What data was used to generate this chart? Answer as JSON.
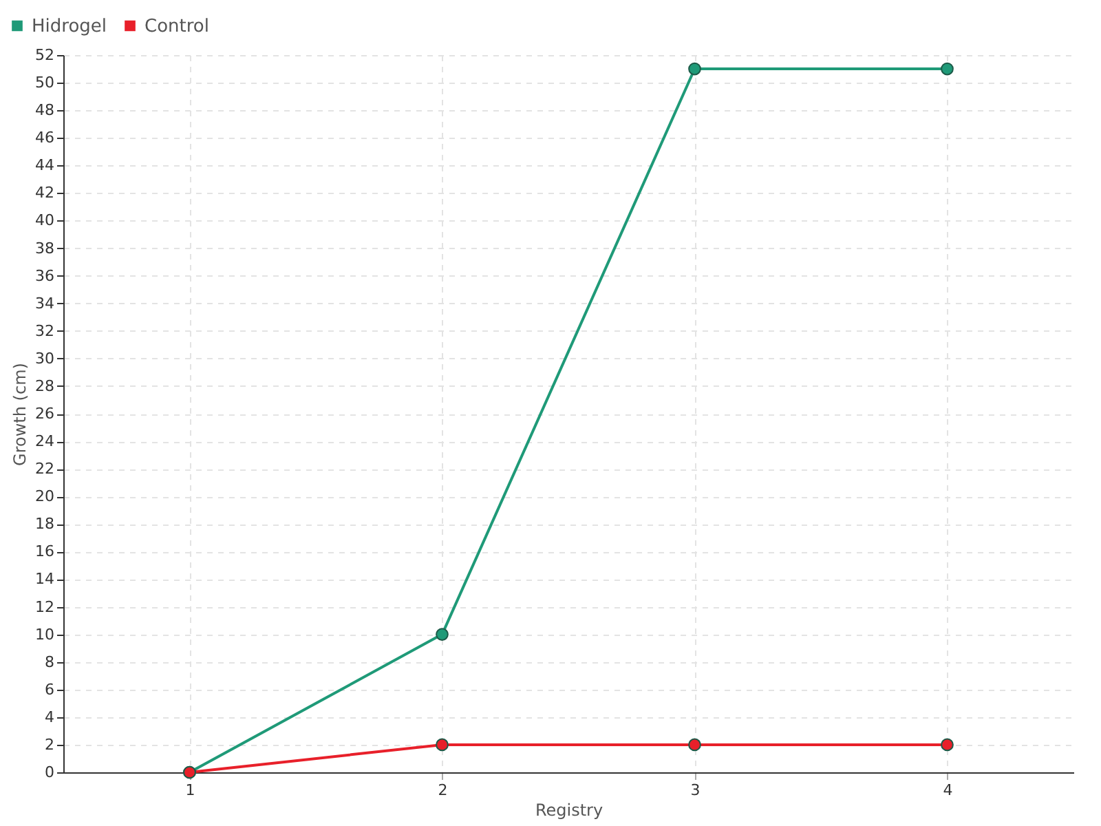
{
  "chart_data": {
    "type": "line",
    "xlabel": "Registry",
    "ylabel": "Growth (cm)",
    "x": [
      1,
      2,
      3,
      4
    ],
    "series": [
      {
        "name": "Hidrogel",
        "color": "#1f9a78",
        "values": [
          0,
          10,
          51,
          51
        ]
      },
      {
        "name": "Control",
        "color": "#e8202a",
        "values": [
          0,
          2,
          2,
          2
        ]
      }
    ],
    "xlim": [
      0.5,
      4.5
    ],
    "xticks": [
      1,
      2,
      3,
      4
    ],
    "ylim": [
      0,
      52
    ],
    "yticks": [
      0,
      2,
      4,
      6,
      8,
      10,
      12,
      14,
      16,
      18,
      20,
      22,
      24,
      26,
      28,
      30,
      32,
      34,
      36,
      38,
      40,
      42,
      44,
      46,
      48,
      50,
      52
    ],
    "grid": true,
    "legend": "top left",
    "marker": "circle",
    "line_style": "solid"
  }
}
